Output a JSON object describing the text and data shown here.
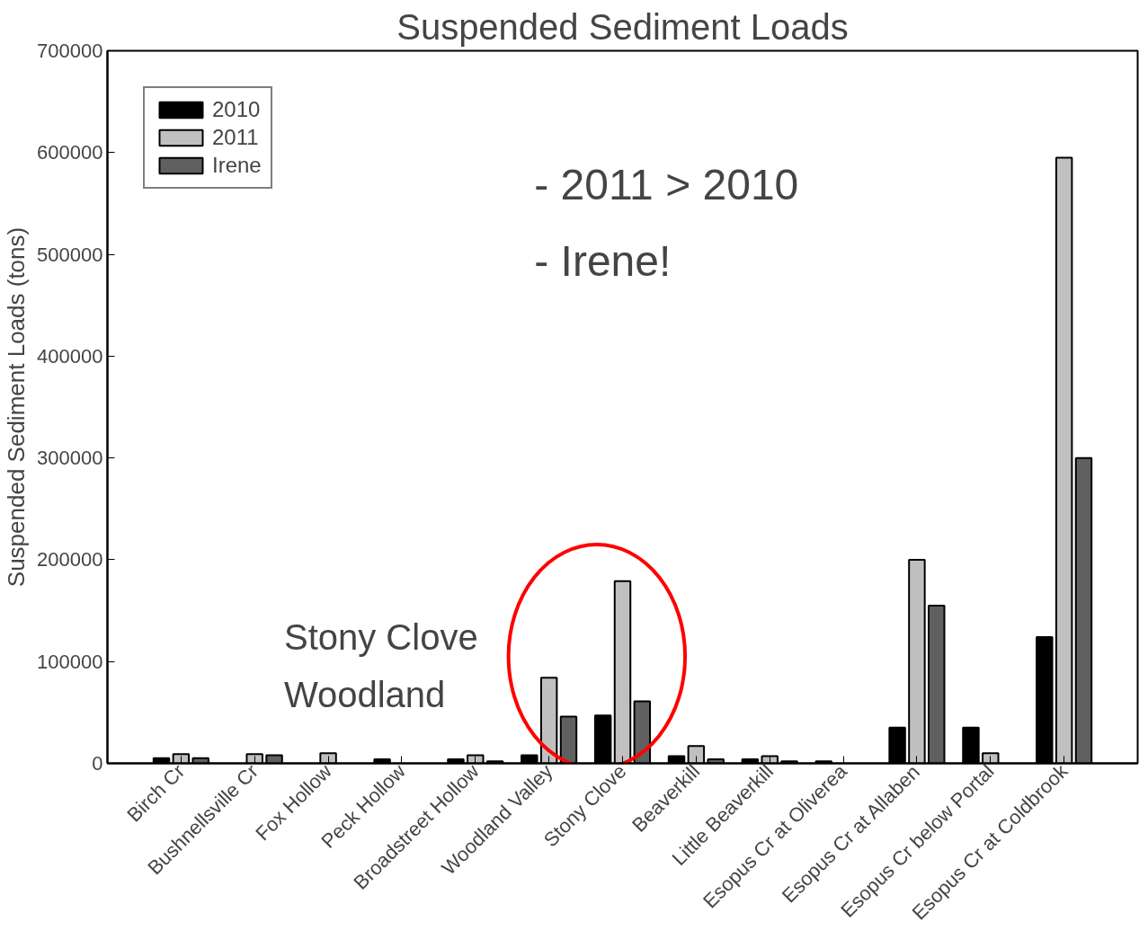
{
  "chart_data": {
    "type": "bar",
    "title": "Suspended Sediment Loads",
    "ylabel": "Suspended Sediment Loads (tons)",
    "categories": [
      "Birch Cr",
      "Bushnellsville Cr",
      "Fox Hollow",
      "Peck Hollow",
      "Broadstreet Hollow",
      "Woodland Valley",
      "Stony Clove",
      "Beaverkill",
      "Little Beaverkill",
      "Esopus Cr at Oliverea",
      "Esopus Cr at Allaben",
      "Esopus Cr below Portal",
      "Esopus Cr at Coldbrook"
    ],
    "series": [
      {
        "name": "2010",
        "color": "#000000",
        "values": [
          5000,
          null,
          null,
          4000,
          4000,
          8000,
          47000,
          7000,
          4000,
          2000,
          35000,
          35000,
          124000
        ]
      },
      {
        "name": "2011",
        "color": "#c0c0c0",
        "values": [
          9000,
          9000,
          10000,
          null,
          8000,
          84000,
          179000,
          17000,
          7000,
          null,
          200000,
          10000,
          595000
        ]
      },
      {
        "name": "Irene",
        "color": "#606060",
        "values": [
          5000,
          8000,
          null,
          null,
          2000,
          46000,
          61000,
          4000,
          2000,
          null,
          155000,
          null,
          300000
        ]
      }
    ],
    "ylim": [
      0,
      700000
    ],
    "yticks": [
      0,
      100000,
      200000,
      300000,
      400000,
      500000,
      600000,
      700000
    ],
    "legend": "top left",
    "grid": false,
    "annotations": [
      "-   2011 > 2010",
      "-   Irene!",
      "Stony Clove\nWoodland"
    ]
  }
}
